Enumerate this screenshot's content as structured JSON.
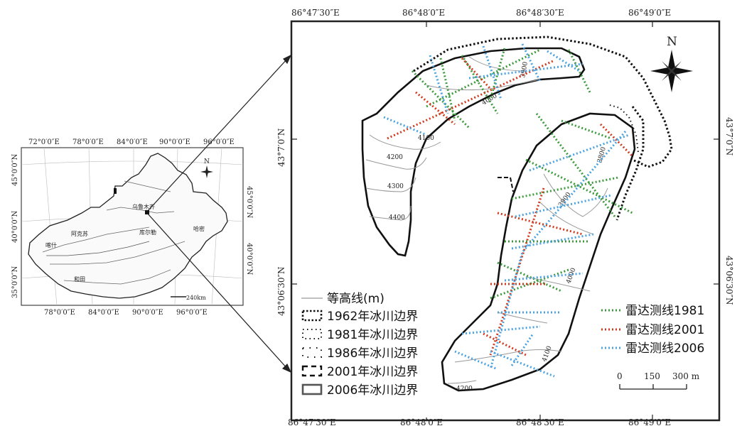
{
  "inset": {
    "top_lon": [
      "72°0′0″E",
      "78°0′0″E",
      "84°0′0″E",
      "90°0′0″E",
      "96°0′0″E"
    ],
    "bottom_lon": [
      "78°0′0″E",
      "84°0′0″E",
      "90°0′0″E",
      "96°0′0″E"
    ],
    "left_lat": [
      "45°0′0″N",
      "40°0′0″N",
      "35°0′0″N"
    ],
    "right_lat": [
      "45°0′0″N",
      "40°0′0″N"
    ],
    "scale": "240km",
    "places": [
      "喀什",
      "阿克苏",
      "库尔勒",
      "乌鲁木齐",
      "哈密",
      "和田"
    ],
    "north": "N"
  },
  "main": {
    "top_lon": [
      "86°47′30″E",
      "86°48′0″E",
      "86°48′30″E",
      "86°49′0″E"
    ],
    "bottom_lon": [
      "86°47′30″E",
      "86°48′0″E",
      "86°48′30″E",
      "86°49′0″E"
    ],
    "left_lat": [
      "43°7′0″N",
      "43°06′30″N"
    ],
    "right_lat": [
      "43°7′0″N",
      "43°06′30″N"
    ],
    "north": "N",
    "contours": [
      "4100",
      "4200",
      "4300",
      "4400",
      "4000",
      "4100",
      "4200",
      "3900",
      "3800",
      "3900",
      "4000"
    ],
    "scale_ticks": [
      "0",
      "150",
      "300 m"
    ]
  },
  "legend_left": [
    {
      "label": "等高线(m)"
    },
    {
      "label": "1962年冰川边界"
    },
    {
      "label": "1981年冰川边界"
    },
    {
      "label": "1986年冰川边界"
    },
    {
      "label": "2001年冰川边界"
    },
    {
      "label": "2006年冰川边界"
    }
  ],
  "legend_right": [
    {
      "label": "雷达测线1981",
      "color": "#3c9a3c"
    },
    {
      "label": "雷达测线2001",
      "color": "#d23a1e"
    },
    {
      "label": "雷达测线2006",
      "color": "#4da3e0"
    }
  ]
}
